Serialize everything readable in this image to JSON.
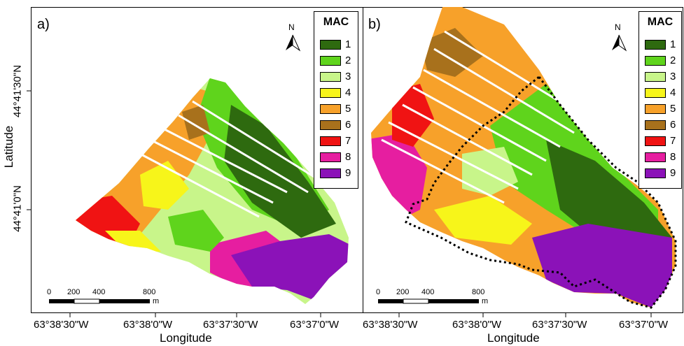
{
  "panels": [
    {
      "id": "a",
      "label": "a)"
    },
    {
      "id": "b",
      "label": "b)"
    }
  ],
  "legend": {
    "title": "MAC",
    "classes": [
      {
        "label": "1",
        "color": "#2e6a0f"
      },
      {
        "label": "2",
        "color": "#5fd41c"
      },
      {
        "label": "3",
        "color": "#c8f58a"
      },
      {
        "label": "4",
        "color": "#f7f51a"
      },
      {
        "label": "5",
        "color": "#f7a12a"
      },
      {
        "label": "6",
        "color": "#a8711c"
      },
      {
        "label": "7",
        "color": "#f01313"
      },
      {
        "label": "8",
        "color": "#e61ea0"
      },
      {
        "label": "9",
        "color": "#8b12b8"
      }
    ]
  },
  "north_arrow": {
    "label": "N"
  },
  "scale_bar": {
    "labels": [
      "0",
      "200",
      "400",
      "800"
    ],
    "unit": "m"
  },
  "axes": {
    "x_title": "Longitude",
    "y_title": "Latitude",
    "x_ticks": [
      "63°38'30\"W",
      "63°38'0\"W",
      "63°37'30\"W",
      "63°37'0\"W"
    ],
    "y_ticks": [
      "44°41'30\"N",
      "44°41'0\"N"
    ]
  },
  "colors": {
    "boundary": "#000000",
    "background": "#ffffff"
  }
}
